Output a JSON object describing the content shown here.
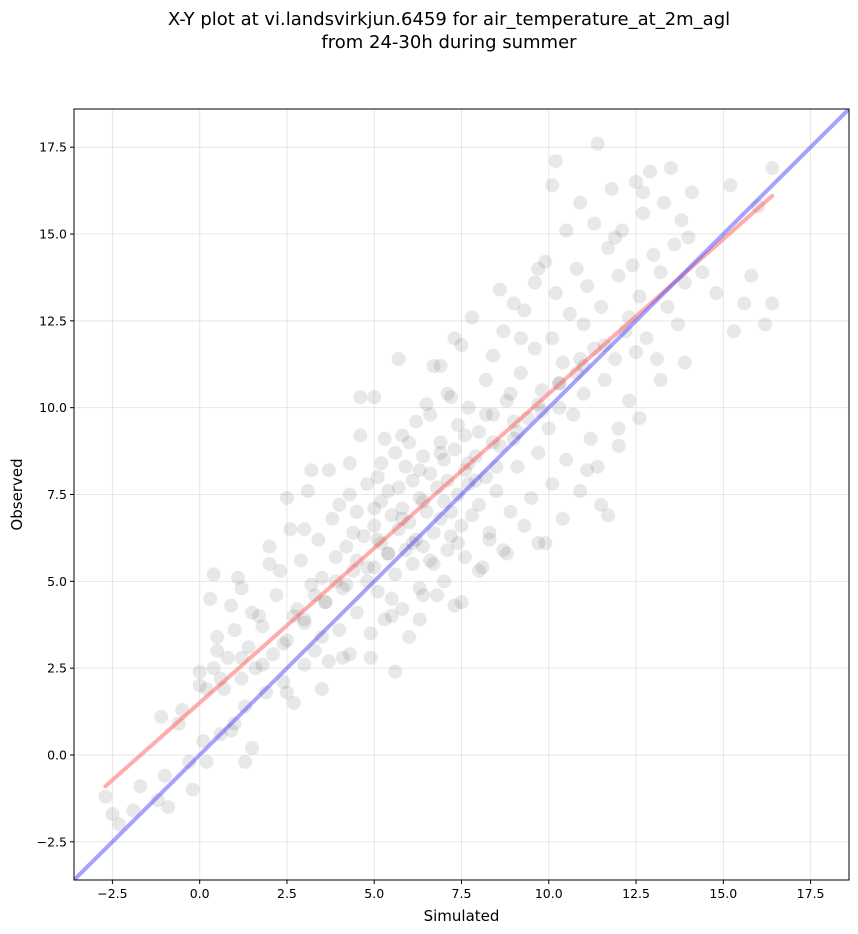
{
  "chart_data": {
    "type": "scatter",
    "title_line1": "X-Y plot at vi.landsvirkjun.6459 for air_temperature_at_2m_agl",
    "title_line2": "from 24-30h during summer",
    "xlabel": "Simulated",
    "ylabel": "Observed",
    "xlim": [
      -3.6,
      18.6
    ],
    "ylim": [
      -3.6,
      18.6
    ],
    "xticks": [
      -2.5,
      0.0,
      2.5,
      5.0,
      7.5,
      10.0,
      12.5,
      15.0,
      17.5
    ],
    "yticks": [
      -2.5,
      0.0,
      2.5,
      5.0,
      7.5,
      10.0,
      12.5,
      15.0,
      17.5
    ],
    "xtick_labels": [
      "−2.5",
      "0.0",
      "2.5",
      "5.0",
      "7.5",
      "10.0",
      "12.5",
      "15.0",
      "17.5"
    ],
    "ytick_labels": [
      "−2.5",
      "0.0",
      "2.5",
      "5.0",
      "7.5",
      "10.0",
      "12.5",
      "15.0",
      "17.5"
    ],
    "grid": true,
    "point_color": "#000000",
    "point_alpha": 0.09,
    "fit_line": {
      "color": "#ff5a5a",
      "alpha": 0.5,
      "x": [
        -2.7,
        16.4
      ],
      "y": [
        -0.9,
        16.1
      ]
    },
    "identity_line": {
      "color": "#4a4aff",
      "alpha": 0.5,
      "x": [
        -3.6,
        18.6
      ],
      "y": [
        -3.6,
        18.6
      ]
    },
    "points": [
      [
        -2.7,
        -1.2
      ],
      [
        -2.5,
        -1.7
      ],
      [
        -2.3,
        -2.0
      ],
      [
        -1.9,
        -1.6
      ],
      [
        -1.7,
        -0.9
      ],
      [
        -1.2,
        -1.3
      ],
      [
        -1.0,
        -0.6
      ],
      [
        -0.9,
        -1.5
      ],
      [
        -0.6,
        0.9
      ],
      [
        -0.3,
        -0.2
      ],
      [
        -0.2,
        -1.0
      ],
      [
        -1.1,
        1.1
      ],
      [
        0.0,
        2.0
      ],
      [
        0.0,
        2.4
      ],
      [
        0.1,
        0.4
      ],
      [
        0.2,
        -0.2
      ],
      [
        0.3,
        4.5
      ],
      [
        0.4,
        5.2
      ],
      [
        0.4,
        2.5
      ],
      [
        0.5,
        3.4
      ],
      [
        0.6,
        0.6
      ],
      [
        0.7,
        1.9
      ],
      [
        0.8,
        2.8
      ],
      [
        0.9,
        4.3
      ],
      [
        1.0,
        3.6
      ],
      [
        1.0,
        0.9
      ],
      [
        1.1,
        5.1
      ],
      [
        1.2,
        2.2
      ],
      [
        1.2,
        4.8
      ],
      [
        1.3,
        1.4
      ],
      [
        1.4,
        3.1
      ],
      [
        1.5,
        0.2
      ],
      [
        1.6,
        2.5
      ],
      [
        1.7,
        4.0
      ],
      [
        1.8,
        3.7
      ],
      [
        1.9,
        1.8
      ],
      [
        2.0,
        6.0
      ],
      [
        2.1,
        2.9
      ],
      [
        2.2,
        4.6
      ],
      [
        2.3,
        5.3
      ],
      [
        2.4,
        2.1
      ],
      [
        2.5,
        7.4
      ],
      [
        2.5,
        3.3
      ],
      [
        2.6,
        6.5
      ],
      [
        2.7,
        1.5
      ],
      [
        2.8,
        4.2
      ],
      [
        2.9,
        5.6
      ],
      [
        3.0,
        2.6
      ],
      [
        3.0,
        3.9
      ],
      [
        3.1,
        7.6
      ],
      [
        3.2,
        4.9
      ],
      [
        3.3,
        3.0
      ],
      [
        3.4,
        6.2
      ],
      [
        3.5,
        5.1
      ],
      [
        3.5,
        1.9
      ],
      [
        3.6,
        4.4
      ],
      [
        3.7,
        8.2
      ],
      [
        3.7,
        2.7
      ],
      [
        3.8,
        6.8
      ],
      [
        3.9,
        5.7
      ],
      [
        4.0,
        3.6
      ],
      [
        4.0,
        7.2
      ],
      [
        4.1,
        4.8
      ],
      [
        4.2,
        6.0
      ],
      [
        4.3,
        8.4
      ],
      [
        4.3,
        2.9
      ],
      [
        4.4,
        5.3
      ],
      [
        4.5,
        7.0
      ],
      [
        4.5,
        4.1
      ],
      [
        4.6,
        9.2
      ],
      [
        4.7,
        6.3
      ],
      [
        4.8,
        5.0
      ],
      [
        4.8,
        7.8
      ],
      [
        4.9,
        3.5
      ],
      [
        5.0,
        10.3
      ],
      [
        5.0,
        6.6
      ],
      [
        5.0,
        5.4
      ],
      [
        5.1,
        8.0
      ],
      [
        5.1,
        4.7
      ],
      [
        5.2,
        7.3
      ],
      [
        5.2,
        6.1
      ],
      [
        5.3,
        9.1
      ],
      [
        5.3,
        3.9
      ],
      [
        5.4,
        5.8
      ],
      [
        5.4,
        7.6
      ],
      [
        5.5,
        6.9
      ],
      [
        5.5,
        4.5
      ],
      [
        5.6,
        8.7
      ],
      [
        5.6,
        5.2
      ],
      [
        5.7,
        6.5
      ],
      [
        5.7,
        11.4
      ],
      [
        5.8,
        7.1
      ],
      [
        5.8,
        4.2
      ],
      [
        5.9,
        5.9
      ],
      [
        5.9,
        8.3
      ],
      [
        6.0,
        6.7
      ],
      [
        6.0,
        3.4
      ],
      [
        6.1,
        7.9
      ],
      [
        6.1,
        5.5
      ],
      [
        6.2,
        9.6
      ],
      [
        6.2,
        6.2
      ],
      [
        6.3,
        7.4
      ],
      [
        6.3,
        4.8
      ],
      [
        6.4,
        8.6
      ],
      [
        6.4,
        6.0
      ],
      [
        6.5,
        10.1
      ],
      [
        6.5,
        7.0
      ],
      [
        6.6,
        5.6
      ],
      [
        6.6,
        8.1
      ],
      [
        6.7,
        6.4
      ],
      [
        6.7,
        11.2
      ],
      [
        6.8,
        7.7
      ],
      [
        6.8,
        4.6
      ],
      [
        6.9,
        9.0
      ],
      [
        6.9,
        6.8
      ],
      [
        7.0,
        7.3
      ],
      [
        7.0,
        8.5
      ],
      [
        7.1,
        5.9
      ],
      [
        7.1,
        10.4
      ],
      [
        7.2,
        7.0
      ],
      [
        7.2,
        6.3
      ],
      [
        7.3,
        8.8
      ],
      [
        7.3,
        4.3
      ],
      [
        7.4,
        7.5
      ],
      [
        7.4,
        9.5
      ],
      [
        7.5,
        6.6
      ],
      [
        7.5,
        11.8
      ],
      [
        7.6,
        8.2
      ],
      [
        7.6,
        5.7
      ],
      [
        7.7,
        7.8
      ],
      [
        7.7,
        10.0
      ],
      [
        7.8,
        6.9
      ],
      [
        7.8,
        12.6
      ],
      [
        7.9,
        8.6
      ],
      [
        8.0,
        7.2
      ],
      [
        8.0,
        9.3
      ],
      [
        8.1,
        5.4
      ],
      [
        8.2,
        10.8
      ],
      [
        8.2,
        8.0
      ],
      [
        8.3,
        6.2
      ],
      [
        8.4,
        9.8
      ],
      [
        8.4,
        11.5
      ],
      [
        8.5,
        7.6
      ],
      [
        8.6,
        8.9
      ],
      [
        8.7,
        12.2
      ],
      [
        8.7,
        5.9
      ],
      [
        8.8,
        10.2
      ],
      [
        8.9,
        7.0
      ],
      [
        9.0,
        13.0
      ],
      [
        9.0,
        9.1
      ],
      [
        9.1,
        8.3
      ],
      [
        9.2,
        11.0
      ],
      [
        9.3,
        6.6
      ],
      [
        9.3,
        12.8
      ],
      [
        9.4,
        9.7
      ],
      [
        9.5,
        7.4
      ],
      [
        9.6,
        11.7
      ],
      [
        9.6,
        13.6
      ],
      [
        9.7,
        8.7
      ],
      [
        9.8,
        10.5
      ],
      [
        9.9,
        6.1
      ],
      [
        9.9,
        14.2
      ],
      [
        10.0,
        9.4
      ],
      [
        10.1,
        12.0
      ],
      [
        10.1,
        7.8
      ],
      [
        10.2,
        13.3
      ],
      [
        10.3,
        10.0
      ],
      [
        10.4,
        11.3
      ],
      [
        10.5,
        8.5
      ],
      [
        10.5,
        15.1
      ],
      [
        10.6,
        12.7
      ],
      [
        10.7,
        9.8
      ],
      [
        10.8,
        14.0
      ],
      [
        10.8,
        11.0
      ],
      [
        10.9,
        7.6
      ],
      [
        11.0,
        12.4
      ],
      [
        11.0,
        10.4
      ],
      [
        11.1,
        13.5
      ],
      [
        11.2,
        9.1
      ],
      [
        11.3,
        15.3
      ],
      [
        11.3,
        11.7
      ],
      [
        11.4,
        17.6
      ],
      [
        11.4,
        8.3
      ],
      [
        11.5,
        12.9
      ],
      [
        11.6,
        10.8
      ],
      [
        11.7,
        14.6
      ],
      [
        11.7,
        6.9
      ],
      [
        11.8,
        16.3
      ],
      [
        11.9,
        11.4
      ],
      [
        12.0,
        13.8
      ],
      [
        12.0,
        9.4
      ],
      [
        12.1,
        15.1
      ],
      [
        12.2,
        12.2
      ],
      [
        12.3,
        10.2
      ],
      [
        12.4,
        14.1
      ],
      [
        12.5,
        16.5
      ],
      [
        12.5,
        11.6
      ],
      [
        12.6,
        13.2
      ],
      [
        12.7,
        15.6
      ],
      [
        12.8,
        12.0
      ],
      [
        12.9,
        16.8
      ],
      [
        13.0,
        14.4
      ],
      [
        13.1,
        11.4
      ],
      [
        13.2,
        13.9
      ],
      [
        13.3,
        15.9
      ],
      [
        13.4,
        12.9
      ],
      [
        13.5,
        16.9
      ],
      [
        13.6,
        14.7
      ],
      [
        13.7,
        12.4
      ],
      [
        13.8,
        15.4
      ],
      [
        13.9,
        13.6
      ],
      [
        14.0,
        14.9
      ],
      [
        14.1,
        16.2
      ],
      [
        14.4,
        13.9
      ],
      [
        14.8,
        13.3
      ],
      [
        15.2,
        16.4
      ],
      [
        15.3,
        12.2
      ],
      [
        15.6,
        13.0
      ],
      [
        15.8,
        13.8
      ],
      [
        16.0,
        15.8
      ],
      [
        16.2,
        12.4
      ],
      [
        16.4,
        16.9
      ],
      [
        16.4,
        13.0
      ],
      [
        10.2,
        17.1
      ],
      [
        10.1,
        16.4
      ],
      [
        10.9,
        15.9
      ],
      [
        11.9,
        14.9
      ],
      [
        12.7,
        16.2
      ],
      [
        9.7,
        14.0
      ],
      [
        8.6,
        13.4
      ],
      [
        9.2,
        12.0
      ],
      [
        7.3,
        12.0
      ],
      [
        6.9,
        11.2
      ],
      [
        4.6,
        10.3
      ],
      [
        5.8,
        9.2
      ],
      [
        4.3,
        7.5
      ],
      [
        3.2,
        8.2
      ],
      [
        3.0,
        6.5
      ],
      [
        2.0,
        5.5
      ],
      [
        1.5,
        4.1
      ],
      [
        0.5,
        3.0
      ],
      [
        0.2,
        1.9
      ],
      [
        -0.5,
        1.3
      ],
      [
        1.3,
        -0.2
      ],
      [
        0.9,
        0.7
      ],
      [
        2.5,
        1.8
      ],
      [
        3.5,
        3.4
      ],
      [
        4.1,
        2.8
      ],
      [
        4.9,
        2.8
      ],
      [
        5.6,
        2.4
      ],
      [
        6.3,
        3.9
      ],
      [
        7.5,
        4.4
      ],
      [
        8.0,
        5.3
      ],
      [
        8.8,
        5.8
      ],
      [
        9.7,
        6.1
      ],
      [
        10.4,
        6.8
      ],
      [
        11.1,
        8.2
      ],
      [
        11.5,
        7.2
      ],
      [
        12.0,
        8.9
      ],
      [
        12.6,
        9.7
      ],
      [
        13.2,
        10.8
      ],
      [
        13.9,
        11.3
      ],
      [
        6.1,
        6.1
      ],
      [
        6.7,
        5.5
      ],
      [
        7.4,
        6.1
      ],
      [
        5.4,
        5.8
      ],
      [
        4.8,
        5.4
      ],
      [
        4.2,
        4.9
      ],
      [
        3.6,
        4.4
      ],
      [
        3.0,
        3.8
      ],
      [
        2.4,
        3.2
      ],
      [
        1.8,
        2.6
      ],
      [
        7.9,
        7.9
      ],
      [
        8.5,
        8.3
      ],
      [
        9.1,
        9.3
      ],
      [
        9.8,
        9.9
      ],
      [
        10.3,
        10.7
      ],
      [
        10.9,
        11.4
      ],
      [
        11.6,
        11.8
      ],
      [
        12.3,
        12.6
      ],
      [
        5.2,
        8.4
      ],
      [
        6.0,
        9.0
      ],
      [
        6.6,
        9.8
      ],
      [
        7.2,
        10.3
      ],
      [
        5.5,
        4.0
      ],
      [
        6.4,
        4.6
      ],
      [
        7.0,
        5.0
      ],
      [
        8.3,
        6.4
      ],
      [
        4.4,
        6.4
      ],
      [
        5.0,
        7.1
      ],
      [
        5.7,
        7.7
      ],
      [
        6.3,
        8.2
      ],
      [
        6.9,
        8.7
      ],
      [
        7.6,
        9.2
      ],
      [
        8.2,
        9.8
      ],
      [
        8.9,
        10.4
      ],
      [
        3.9,
        5.0
      ],
      [
        4.5,
        5.6
      ],
      [
        5.1,
        6.2
      ],
      [
        5.8,
        6.8
      ],
      [
        6.4,
        7.3
      ],
      [
        7.1,
        7.9
      ],
      [
        7.7,
        8.4
      ],
      [
        8.4,
        9.0
      ],
      [
        9.0,
        9.6
      ],
      [
        9.7,
        10.1
      ],
      [
        10.3,
        10.7
      ],
      [
        11.0,
        11.2
      ],
      [
        2.7,
        4.0
      ],
      [
        3.3,
        4.6
      ],
      [
        1.2,
        2.8
      ],
      [
        0.6,
        2.2
      ]
    ]
  }
}
